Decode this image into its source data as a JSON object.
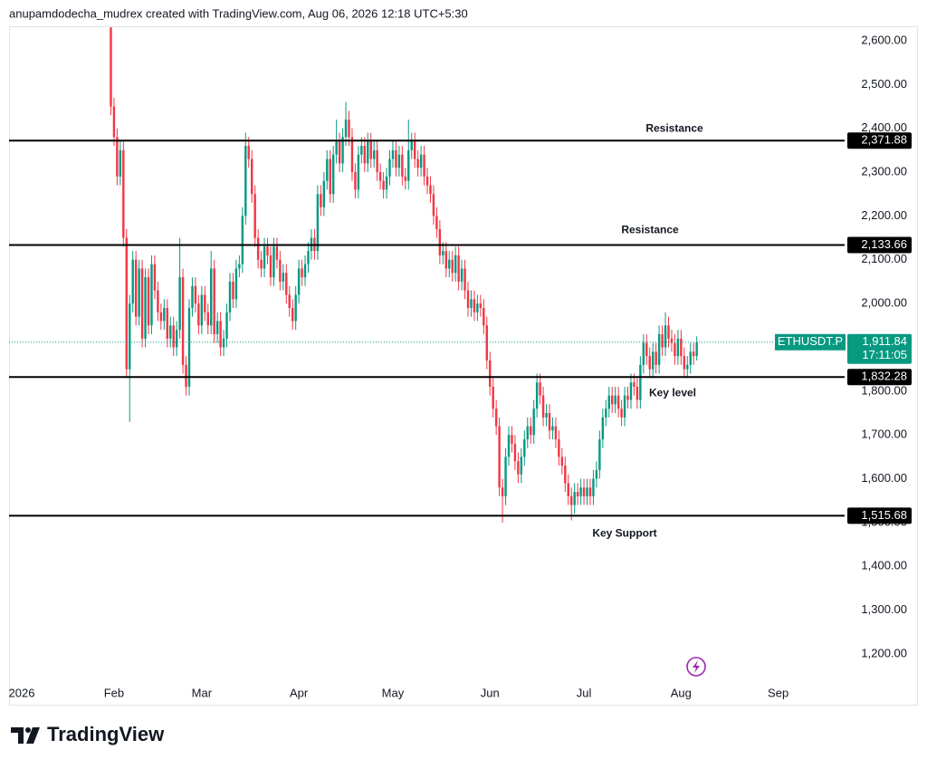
{
  "header": "anupamdodecha_mudrex created with TradingView.com, Aug 06, 2026 12:18 UTC+5:30",
  "footer_logo": "TradingView",
  "chart_data": {
    "type": "candlestick",
    "up_color": "#089981",
    "down_color": "#f23645",
    "open": [
      2630,
      2450,
      2380,
      2290,
      2350,
      2150,
      1850,
      2000,
      2100,
      1970,
      2080,
      1920,
      2060,
      1950,
      2090,
      2030,
      1980,
      1960,
      1990,
      1920,
      1950,
      1900,
      1940,
      2060,
      1860,
      1810,
      1990,
      2040,
      2000,
      1950,
      2020,
      1980,
      1950,
      2080,
      1930,
      1960,
      1900,
      1920,
      1980,
      2050,
      2010,
      2080,
      2090,
      2200,
      2360,
      2330,
      2250,
      2150,
      2100,
      2080,
      2130,
      2110,
      2060,
      2130,
      2100,
      2050,
      2070,
      2020,
      1990,
      1960,
      2020,
      2080,
      2060,
      2090,
      2120,
      2150,
      2120,
      2250,
      2220,
      2280,
      2330,
      2250,
      2340,
      2370,
      2320,
      2380,
      2420,
      2380,
      2300,
      2260,
      2340,
      2360,
      2320,
      2370,
      2330,
      2350,
      2300,
      2280,
      2260,
      2290,
      2330,
      2350,
      2310,
      2340,
      2290,
      2280,
      2350,
      2370,
      2330,
      2310,
      2340,
      2290,
      2270,
      2250,
      2200,
      2170,
      2110,
      2120,
      2080,
      2100,
      2070,
      2110,
      2050,
      2080,
      2030,
      1990,
      2010,
      1980,
      2000,
      1990,
      1950,
      1870,
      1810,
      1760,
      1720,
      1580,
      1560,
      1650,
      1700,
      1680,
      1640,
      1610,
      1650,
      1690,
      1720,
      1700,
      1760,
      1820,
      1790,
      1740,
      1750,
      1710,
      1720,
      1690,
      1650,
      1630,
      1590,
      1560,
      1540,
      1570,
      1560,
      1580,
      1560,
      1580,
      1560,
      1600,
      1620,
      1690,
      1740,
      1760,
      1790,
      1770,
      1790,
      1760,
      1740,
      1790,
      1780,
      1820,
      1810,
      1780,
      1860,
      1910,
      1880,
      1850,
      1890,
      1860,
      1930,
      1900,
      1950,
      1920,
      1910,
      1880,
      1920,
      1880,
      1850,
      1860,
      1890,
      1880
    ],
    "high": [
      2640,
      2470,
      2400,
      2370,
      2370,
      2170,
      2020,
      2120,
      2120,
      2100,
      2100,
      2080,
      2080,
      2110,
      2110,
      2050,
      2000,
      2010,
      2010,
      1970,
      1970,
      1960,
      2150,
      2080,
      1880,
      2010,
      2060,
      2060,
      2020,
      2040,
      2040,
      2000,
      2120,
      2100,
      1980,
      1980,
      1940,
      2000,
      2070,
      2070,
      2100,
      2110,
      2220,
      2390,
      2380,
      2350,
      2270,
      2170,
      2120,
      2150,
      2150,
      2130,
      2150,
      2150,
      2120,
      2090,
      2090,
      2040,
      2010,
      2040,
      2100,
      2100,
      2110,
      2140,
      2170,
      2170,
      2270,
      2270,
      2300,
      2350,
      2350,
      2360,
      2420,
      2390,
      2400,
      2460,
      2440,
      2400,
      2320,
      2360,
      2380,
      2380,
      2390,
      2390,
      2370,
      2370,
      2320,
      2300,
      2310,
      2350,
      2370,
      2370,
      2360,
      2360,
      2310,
      2420,
      2390,
      2390,
      2350,
      2360,
      2360,
      2310,
      2290,
      2270,
      2220,
      2190,
      2140,
      2140,
      2120,
      2120,
      2130,
      2130,
      2100,
      2100,
      2050,
      2030,
      2030,
      2020,
      2020,
      2010,
      1970,
      1890,
      1830,
      1780,
      1740,
      1600,
      1670,
      1720,
      1720,
      1700,
      1660,
      1670,
      1710,
      1740,
      1740,
      1780,
      1840,
      1840,
      1810,
      1770,
      1770,
      1740,
      1740,
      1710,
      1670,
      1650,
      1610,
      1580,
      1590,
      1590,
      1600,
      1600,
      1600,
      1600,
      1620,
      1640,
      1710,
      1760,
      1780,
      1810,
      1810,
      1810,
      1810,
      1780,
      1810,
      1810,
      1840,
      1840,
      1830,
      1880,
      1930,
      1930,
      1900,
      1910,
      1910,
      1950,
      1950,
      1980,
      1970,
      1940,
      1930,
      1940,
      1940,
      1900,
      1880,
      1910,
      1910,
      1925
    ],
    "low": [
      2430,
      2360,
      2270,
      2270,
      2130,
      1830,
      1730,
      1980,
      1950,
      1950,
      1900,
      1900,
      1930,
      1930,
      2010,
      1960,
      1940,
      1940,
      1900,
      1900,
      1880,
      1880,
      1920,
      1840,
      1790,
      1790,
      1970,
      1980,
      1930,
      1930,
      1960,
      1930,
      1930,
      1910,
      1910,
      1880,
      1880,
      1900,
      1960,
      1990,
      1990,
      2060,
      2070,
      2180,
      2310,
      2230,
      2130,
      2080,
      2060,
      2060,
      2090,
      2040,
      2040,
      2080,
      2030,
      2030,
      2000,
      1970,
      1940,
      1940,
      2000,
      2040,
      2040,
      2070,
      2100,
      2100,
      2100,
      2200,
      2200,
      2260,
      2230,
      2230,
      2320,
      2300,
      2300,
      2360,
      2360,
      2280,
      2240,
      2240,
      2320,
      2300,
      2300,
      2310,
      2310,
      2280,
      2260,
      2240,
      2240,
      2270,
      2310,
      2290,
      2290,
      2270,
      2260,
      2260,
      2330,
      2310,
      2290,
      2290,
      2270,
      2250,
      2230,
      2180,
      2150,
      2090,
      2090,
      2060,
      2060,
      2050,
      2050,
      2030,
      2030,
      2010,
      1970,
      1970,
      1960,
      1960,
      1970,
      1930,
      1850,
      1790,
      1740,
      1700,
      1560,
      1500,
      1540,
      1630,
      1660,
      1620,
      1590,
      1590,
      1630,
      1670,
      1680,
      1680,
      1740,
      1770,
      1720,
      1720,
      1690,
      1690,
      1670,
      1630,
      1610,
      1570,
      1540,
      1505,
      1520,
      1540,
      1540,
      1540,
      1540,
      1540,
      1540,
      1580,
      1600,
      1670,
      1720,
      1740,
      1750,
      1750,
      1740,
      1720,
      1720,
      1760,
      1760,
      1790,
      1760,
      1760,
      1840,
      1860,
      1830,
      1830,
      1840,
      1840,
      1880,
      1880,
      1900,
      1890,
      1860,
      1860,
      1860,
      1830,
      1830,
      1840,
      1860,
      1870
    ],
    "close": [
      2450,
      2380,
      2290,
      2350,
      2150,
      1850,
      2000,
      2100,
      1970,
      2080,
      1920,
      2060,
      1950,
      2090,
      2030,
      1980,
      1960,
      1990,
      1920,
      1950,
      1900,
      1940,
      2060,
      1860,
      1810,
      1990,
      2040,
      2000,
      1950,
      2020,
      1980,
      1950,
      2080,
      1930,
      1960,
      1900,
      1920,
      1980,
      2050,
      2010,
      2080,
      2090,
      2200,
      2360,
      2330,
      2250,
      2150,
      2100,
      2080,
      2130,
      2110,
      2060,
      2130,
      2100,
      2050,
      2070,
      2020,
      1990,
      1960,
      2020,
      2080,
      2060,
      2090,
      2120,
      2150,
      2120,
      2250,
      2220,
      2280,
      2330,
      2250,
      2340,
      2370,
      2320,
      2380,
      2420,
      2380,
      2300,
      2260,
      2340,
      2360,
      2320,
      2370,
      2330,
      2350,
      2300,
      2280,
      2260,
      2290,
      2330,
      2350,
      2310,
      2340,
      2290,
      2280,
      2350,
      2370,
      2330,
      2310,
      2340,
      2290,
      2270,
      2250,
      2200,
      2170,
      2110,
      2120,
      2080,
      2100,
      2070,
      2110,
      2050,
      2080,
      2030,
      1990,
      2010,
      1980,
      2000,
      1990,
      1950,
      1870,
      1810,
      1760,
      1720,
      1580,
      1560,
      1650,
      1700,
      1680,
      1640,
      1610,
      1650,
      1690,
      1720,
      1700,
      1760,
      1820,
      1790,
      1740,
      1750,
      1710,
      1720,
      1690,
      1650,
      1630,
      1590,
      1560,
      1540,
      1570,
      1560,
      1580,
      1560,
      1580,
      1560,
      1600,
      1620,
      1690,
      1740,
      1760,
      1790,
      1770,
      1790,
      1760,
      1740,
      1790,
      1780,
      1820,
      1810,
      1780,
      1860,
      1910,
      1880,
      1850,
      1890,
      1860,
      1930,
      1900,
      1950,
      1920,
      1910,
      1880,
      1920,
      1880,
      1850,
      1860,
      1890,
      1880,
      1911.84
    ],
    "xlim": [
      -32.5,
      234.2
    ],
    "xticks": [
      {
        "value": -30,
        "label": "2026"
      },
      {
        "value": 1,
        "label": "Feb"
      },
      {
        "value": 29,
        "label": "Mar"
      },
      {
        "value": 60,
        "label": "Apr"
      },
      {
        "value": 90,
        "label": "May"
      },
      {
        "value": 121,
        "label": "Jun"
      },
      {
        "value": 151,
        "label": "Jul"
      },
      {
        "value": 182,
        "label": "Aug"
      },
      {
        "value": 213,
        "label": "Sep"
      }
    ],
    "ylim": [
      1127.6,
      2631
    ],
    "yticks": [
      {
        "value": 1200,
        "label": "1,200.00"
      },
      {
        "value": 1300,
        "label": "1,300.00"
      },
      {
        "value": 1400,
        "label": "1,400.00"
      },
      {
        "value": 1500,
        "label": "1,500.00"
      },
      {
        "value": 1600,
        "label": "1,600.00"
      },
      {
        "value": 1700,
        "label": "1,700.00"
      },
      {
        "value": 1800,
        "label": "1,800.00"
      },
      {
        "value": 1900,
        "label": "1,900.00"
      },
      {
        "value": 2000,
        "label": "2,000.00"
      },
      {
        "value": 2100,
        "label": "2,100.00"
      },
      {
        "value": 2200,
        "label": "2,200.00"
      },
      {
        "value": 2300,
        "label": "2,300.00"
      },
      {
        "value": 2400,
        "label": "2,400.00"
      },
      {
        "value": 2500,
        "label": "2,500.00"
      },
      {
        "value": 2600,
        "label": "2,600.00"
      }
    ],
    "levels": [
      {
        "value": 2371.88,
        "label": "2,371.88",
        "text": "Resistance"
      },
      {
        "value": 2133.66,
        "label": "2,133.66",
        "text": "Resistance"
      },
      {
        "value": 1832.28,
        "label": "1,832.28",
        "text": "Key level"
      },
      {
        "value": 1515.68,
        "label": "1,515.68",
        "text": "Key Support"
      }
    ],
    "last_price": {
      "symbol": "ETHUSDT.P",
      "value": 1911.84,
      "label": "1,911.84",
      "countdown": "17:11:05",
      "color": "#089981"
    }
  }
}
